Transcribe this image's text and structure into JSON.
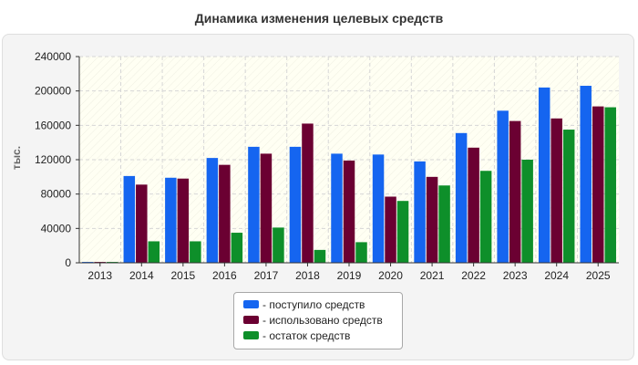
{
  "chart_data": {
    "type": "bar",
    "title": "Динамика изменения целевых средств",
    "ylabel": "тыс.",
    "xlabel": "",
    "ylim": [
      0,
      240000
    ],
    "yticks": [
      0,
      40000,
      80000,
      120000,
      160000,
      200000,
      240000
    ],
    "grid": true,
    "legend_position": "bottom-center",
    "categories": [
      "2013",
      "2014",
      "2015",
      "2016",
      "2017",
      "2018",
      "2019",
      "2020",
      "2021",
      "2022",
      "2023",
      "2024",
      "2025"
    ],
    "series": [
      {
        "name": "- поступило средств",
        "color": "#1565f0",
        "values": [
          1000,
          101000,
          99000,
          122000,
          135000,
          135000,
          127000,
          126000,
          118000,
          151000,
          177000,
          204000,
          206000
        ]
      },
      {
        "name": "- использовано средств",
        "color": "#6b0032",
        "values": [
          1000,
          91000,
          98000,
          114000,
          127000,
          162000,
          119000,
          77000,
          100000,
          134000,
          165000,
          168000,
          182000
        ]
      },
      {
        "name": "- остаток средств",
        "color": "#0e8f2a",
        "values": [
          1000,
          25000,
          25000,
          35000,
          41000,
          15000,
          24000,
          72000,
          90000,
          107000,
          120000,
          155000,
          181000
        ]
      }
    ]
  }
}
